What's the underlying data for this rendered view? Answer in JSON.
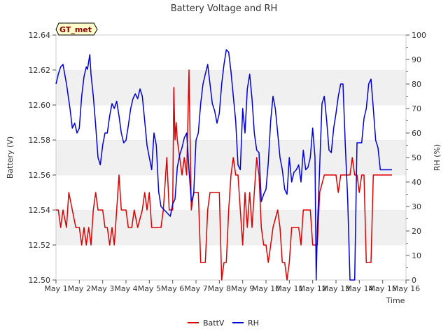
{
  "chart_data": {
    "type": "line",
    "title": "Battery Voltage and RH",
    "xlabel": "Time",
    "ylabel_left": "Battery (V)",
    "ylabel_right": "RH (%)",
    "xlim": [
      1,
      16
    ],
    "ylim_left": [
      12.5,
      12.64
    ],
    "ylim_right": [
      0,
      100
    ],
    "x_ticks": [
      1,
      2,
      3,
      4,
      5,
      6,
      7,
      8,
      9,
      10,
      11,
      12,
      13,
      14,
      15,
      16
    ],
    "x_tick_labels": [
      "May 1",
      "May 2",
      "May 3",
      "May 4",
      "May 5",
      "May 6",
      "May 7",
      "May 8",
      "May 9",
      "May 10",
      "May 11",
      "May 12",
      "May 13",
      "May 14",
      "May 15",
      "May 16"
    ],
    "y_left_ticks": [
      "12.50",
      "12.52",
      "12.54",
      "12.56",
      "12.58",
      "12.60",
      "12.62",
      "12.64"
    ],
    "y_right_ticks": [
      "0",
      "10",
      "20",
      "30",
      "40",
      "50",
      "60",
      "70",
      "80",
      "90",
      "100"
    ],
    "grid": "horizontal bands",
    "legend_position": "bottom-center",
    "badge_label": "GT_met",
    "colors": {
      "BattV": "#dd0000",
      "RH": "#0000dd",
      "band": "#f0f0f0",
      "badge_fill": "#ffffcc"
    },
    "series": [
      {
        "name": "BattV",
        "axis": "left",
        "points": [
          [
            1.0,
            12.54
          ],
          [
            1.1,
            12.54
          ],
          [
            1.2,
            12.53
          ],
          [
            1.3,
            12.54
          ],
          [
            1.45,
            12.53
          ],
          [
            1.55,
            12.55
          ],
          [
            1.7,
            12.54
          ],
          [
            1.85,
            12.53
          ],
          [
            2.0,
            12.53
          ],
          [
            2.1,
            12.52
          ],
          [
            2.2,
            12.53
          ],
          [
            2.3,
            12.52
          ],
          [
            2.4,
            12.53
          ],
          [
            2.5,
            12.52
          ],
          [
            2.6,
            12.54
          ],
          [
            2.7,
            12.55
          ],
          [
            2.8,
            12.54
          ],
          [
            3.0,
            12.54
          ],
          [
            3.1,
            12.53
          ],
          [
            3.2,
            12.53
          ],
          [
            3.3,
            12.52
          ],
          [
            3.4,
            12.53
          ],
          [
            3.5,
            12.52
          ],
          [
            3.6,
            12.54
          ],
          [
            3.7,
            12.56
          ],
          [
            3.8,
            12.54
          ],
          [
            4.0,
            12.54
          ],
          [
            4.1,
            12.53
          ],
          [
            4.25,
            12.53
          ],
          [
            4.35,
            12.54
          ],
          [
            4.5,
            12.53
          ],
          [
            4.7,
            12.54
          ],
          [
            4.8,
            12.55
          ],
          [
            4.9,
            12.54
          ],
          [
            5.0,
            12.55
          ],
          [
            5.1,
            12.53
          ],
          [
            5.5,
            12.53
          ],
          [
            5.6,
            12.54
          ],
          [
            5.75,
            12.57
          ],
          [
            5.85,
            12.54
          ],
          [
            6.0,
            12.54
          ],
          [
            6.05,
            12.61
          ],
          [
            6.1,
            12.58
          ],
          [
            6.15,
            12.59
          ],
          [
            6.2,
            12.58
          ],
          [
            6.3,
            12.57
          ],
          [
            6.4,
            12.56
          ],
          [
            6.5,
            12.57
          ],
          [
            6.6,
            12.56
          ],
          [
            6.7,
            12.62
          ],
          [
            6.8,
            12.54
          ],
          [
            6.9,
            12.55
          ],
          [
            7.1,
            12.55
          ],
          [
            7.2,
            12.51
          ],
          [
            7.4,
            12.51
          ],
          [
            7.5,
            12.54
          ],
          [
            7.6,
            12.55
          ],
          [
            8.0,
            12.55
          ],
          [
            8.1,
            12.5
          ],
          [
            8.2,
            12.51
          ],
          [
            8.3,
            12.51
          ],
          [
            8.4,
            12.54
          ],
          [
            8.5,
            12.56
          ],
          [
            8.6,
            12.57
          ],
          [
            8.7,
            12.56
          ],
          [
            8.8,
            12.56
          ],
          [
            8.9,
            12.54
          ],
          [
            9.0,
            12.52
          ],
          [
            9.1,
            12.55
          ],
          [
            9.2,
            12.53
          ],
          [
            9.3,
            12.55
          ],
          [
            9.4,
            12.53
          ],
          [
            9.5,
            12.55
          ],
          [
            9.6,
            12.57
          ],
          [
            9.7,
            12.56
          ],
          [
            9.8,
            12.53
          ],
          [
            9.9,
            12.52
          ],
          [
            10.0,
            12.52
          ],
          [
            10.1,
            12.51
          ],
          [
            10.2,
            12.52
          ],
          [
            10.3,
            12.53
          ],
          [
            10.5,
            12.54
          ],
          [
            10.6,
            12.53
          ],
          [
            10.7,
            12.51
          ],
          [
            10.8,
            12.51
          ],
          [
            10.9,
            12.5
          ],
          [
            11.0,
            12.51
          ],
          [
            11.1,
            12.53
          ],
          [
            11.4,
            12.53
          ],
          [
            11.5,
            12.52
          ],
          [
            11.6,
            12.54
          ],
          [
            11.9,
            12.54
          ],
          [
            12.0,
            12.52
          ],
          [
            12.2,
            12.52
          ],
          [
            12.3,
            12.55
          ],
          [
            12.5,
            12.56
          ],
          [
            12.6,
            12.56
          ],
          [
            12.8,
            12.56
          ],
          [
            13.0,
            12.56
          ],
          [
            13.1,
            12.55
          ],
          [
            13.2,
            12.56
          ],
          [
            13.6,
            12.56
          ],
          [
            13.7,
            12.57
          ],
          [
            13.8,
            12.56
          ],
          [
            13.9,
            12.56
          ],
          [
            14.0,
            12.55
          ],
          [
            14.1,
            12.56
          ],
          [
            14.2,
            12.56
          ],
          [
            14.3,
            12.51
          ],
          [
            14.5,
            12.51
          ],
          [
            14.6,
            12.56
          ],
          [
            15.0,
            12.56
          ],
          [
            15.4,
            12.56
          ]
        ]
      },
      {
        "name": "RH",
        "axis": "right",
        "points": [
          [
            1.0,
            80
          ],
          [
            1.1,
            84
          ],
          [
            1.2,
            87
          ],
          [
            1.3,
            88
          ],
          [
            1.45,
            80
          ],
          [
            1.6,
            70
          ],
          [
            1.7,
            62
          ],
          [
            1.8,
            64
          ],
          [
            1.9,
            60
          ],
          [
            2.0,
            62
          ],
          [
            2.1,
            75
          ],
          [
            2.2,
            83
          ],
          [
            2.3,
            87
          ],
          [
            2.35,
            86
          ],
          [
            2.45,
            92
          ],
          [
            2.5,
            84
          ],
          [
            2.6,
            75
          ],
          [
            2.7,
            63
          ],
          [
            2.8,
            50
          ],
          [
            2.9,
            47
          ],
          [
            3.0,
            55
          ],
          [
            3.1,
            60
          ],
          [
            3.2,
            60
          ],
          [
            3.3,
            67
          ],
          [
            3.4,
            72
          ],
          [
            3.5,
            70
          ],
          [
            3.6,
            73
          ],
          [
            3.7,
            67
          ],
          [
            3.8,
            60
          ],
          [
            3.9,
            56
          ],
          [
            4.0,
            57
          ],
          [
            4.1,
            63
          ],
          [
            4.2,
            70
          ],
          [
            4.3,
            74
          ],
          [
            4.4,
            76
          ],
          [
            4.5,
            74
          ],
          [
            4.6,
            78
          ],
          [
            4.7,
            75
          ],
          [
            4.8,
            65
          ],
          [
            4.9,
            55
          ],
          [
            5.0,
            50
          ],
          [
            5.1,
            45
          ],
          [
            5.2,
            60
          ],
          [
            5.3,
            55
          ],
          [
            5.4,
            36
          ],
          [
            5.5,
            30
          ],
          [
            5.6,
            29
          ],
          [
            5.7,
            28
          ],
          [
            5.8,
            27
          ],
          [
            5.9,
            26
          ],
          [
            6.0,
            31
          ],
          [
            6.1,
            33
          ],
          [
            6.2,
            46
          ],
          [
            6.3,
            51
          ],
          [
            6.4,
            54
          ],
          [
            6.5,
            58
          ],
          [
            6.6,
            60
          ],
          [
            6.7,
            45
          ],
          [
            6.8,
            32
          ],
          [
            6.9,
            35
          ],
          [
            7.0,
            57
          ],
          [
            7.1,
            60
          ],
          [
            7.2,
            72
          ],
          [
            7.3,
            80
          ],
          [
            7.4,
            84
          ],
          [
            7.5,
            88
          ],
          [
            7.6,
            80
          ],
          [
            7.7,
            72
          ],
          [
            7.8,
            69
          ],
          [
            7.9,
            64
          ],
          [
            8.0,
            68
          ],
          [
            8.1,
            80
          ],
          [
            8.2,
            88
          ],
          [
            8.3,
            94
          ],
          [
            8.4,
            93
          ],
          [
            8.5,
            85
          ],
          [
            8.6,
            75
          ],
          [
            8.7,
            65
          ],
          [
            8.8,
            47
          ],
          [
            8.9,
            45
          ],
          [
            9.0,
            70
          ],
          [
            9.1,
            60
          ],
          [
            9.2,
            78
          ],
          [
            9.3,
            84
          ],
          [
            9.4,
            74
          ],
          [
            9.5,
            60
          ],
          [
            9.6,
            53
          ],
          [
            9.7,
            52
          ],
          [
            9.8,
            32
          ],
          [
            9.9,
            35
          ],
          [
            10.0,
            37
          ],
          [
            10.1,
            48
          ],
          [
            10.2,
            65
          ],
          [
            10.3,
            75
          ],
          [
            10.4,
            70
          ],
          [
            10.5,
            60
          ],
          [
            10.6,
            50
          ],
          [
            10.7,
            45
          ],
          [
            10.8,
            37
          ],
          [
            10.9,
            35
          ],
          [
            11.0,
            50
          ],
          [
            11.1,
            40
          ],
          [
            11.2,
            44
          ],
          [
            11.3,
            45
          ],
          [
            11.4,
            47
          ],
          [
            11.5,
            40
          ],
          [
            11.6,
            53
          ],
          [
            11.7,
            45
          ],
          [
            11.8,
            46
          ],
          [
            11.9,
            50
          ],
          [
            12.0,
            62
          ],
          [
            12.1,
            50
          ],
          [
            12.15,
            0
          ],
          [
            12.2,
            20
          ],
          [
            12.4,
            72
          ],
          [
            12.5,
            75
          ],
          [
            12.6,
            65
          ],
          [
            12.7,
            53
          ],
          [
            12.8,
            52
          ],
          [
            12.9,
            62
          ],
          [
            13.0,
            68
          ],
          [
            13.1,
            75
          ],
          [
            13.2,
            80
          ],
          [
            13.3,
            80
          ],
          [
            13.4,
            55
          ],
          [
            13.5,
            33
          ],
          [
            13.6,
            0
          ],
          [
            13.8,
            0
          ],
          [
            13.9,
            56
          ],
          [
            14.0,
            56
          ],
          [
            14.1,
            56
          ],
          [
            14.2,
            66
          ],
          [
            14.3,
            70
          ],
          [
            14.4,
            80
          ],
          [
            14.5,
            82
          ],
          [
            14.6,
            70
          ],
          [
            14.7,
            57
          ],
          [
            14.8,
            54
          ],
          [
            14.9,
            45
          ],
          [
            15.0,
            45
          ],
          [
            15.2,
            45
          ],
          [
            15.4,
            45
          ]
        ]
      }
    ]
  }
}
